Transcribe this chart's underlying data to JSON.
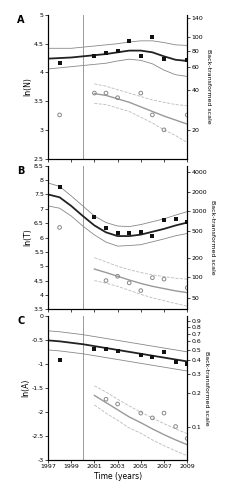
{
  "vline_x": 2000,
  "panelA": {
    "label": "A",
    "ylabel": "ln(N)",
    "ylabel2": "Back-transformed scale",
    "ylim": [
      2.5,
      5.0
    ],
    "yticks": [
      2.5,
      3.0,
      3.5,
      4.0,
      4.5,
      5.0
    ],
    "yticks2_labels": [
      "20",
      "40",
      "60",
      "80",
      "100",
      "140"
    ],
    "yticks2_vals": [
      3.0,
      3.69,
      4.09,
      4.38,
      4.61,
      4.94
    ],
    "black_dots_x": [
      1998,
      2001,
      2002,
      2003,
      2004,
      2005,
      2006,
      2007,
      2009
    ],
    "black_dots_y": [
      4.17,
      4.29,
      4.34,
      4.38,
      4.55,
      4.28,
      4.61,
      4.24,
      4.22
    ],
    "black_solid_x": [
      1997,
      1998,
      1999,
      2000,
      2001,
      2002,
      2003,
      2004,
      2005,
      2006,
      2007,
      2008,
      2009
    ],
    "black_solid_y": [
      4.24,
      4.25,
      4.26,
      4.28,
      4.3,
      4.32,
      4.35,
      4.38,
      4.38,
      4.35,
      4.28,
      4.22,
      4.2
    ],
    "black_upper_y": [
      4.42,
      4.42,
      4.42,
      4.44,
      4.46,
      4.48,
      4.5,
      4.53,
      4.55,
      4.55,
      4.52,
      4.48,
      4.47
    ],
    "black_lower_y": [
      4.06,
      4.08,
      4.1,
      4.12,
      4.14,
      4.16,
      4.2,
      4.23,
      4.21,
      4.15,
      4.04,
      3.96,
      3.93
    ],
    "grey_dots_x": [
      1998,
      2001,
      2002,
      2003,
      2005,
      2006,
      2007,
      2009
    ],
    "grey_dots_y": [
      3.26,
      3.64,
      3.64,
      3.56,
      3.64,
      3.26,
      3.0,
      3.26
    ],
    "grey_solid_x": [
      2001,
      2002,
      2003,
      2004,
      2005,
      2006,
      2007,
      2008,
      2009
    ],
    "grey_solid_y": [
      3.63,
      3.6,
      3.54,
      3.48,
      3.4,
      3.32,
      3.24,
      3.17,
      3.1
    ],
    "grey_upper_y": [
      3.8,
      3.76,
      3.7,
      3.64,
      3.58,
      3.52,
      3.48,
      3.44,
      3.42
    ],
    "grey_lower_y": [
      3.46,
      3.44,
      3.38,
      3.32,
      3.22,
      3.12,
      3.0,
      2.9,
      2.78
    ]
  },
  "panelB": {
    "label": "B",
    "ylabel": "ln(T)",
    "ylabel2": "Back-transformed scale",
    "ylim": [
      3.5,
      8.5
    ],
    "yticks": [
      3.5,
      4.0,
      4.5,
      5.0,
      5.5,
      6.0,
      6.5,
      7.0,
      7.5,
      8.0,
      8.5
    ],
    "yticks2_labels": [
      "50",
      "100",
      "200",
      "500",
      "1000",
      "2000",
      "4000"
    ],
    "yticks2_vals": [
      3.91,
      4.61,
      5.3,
      6.21,
      6.91,
      7.6,
      8.29
    ],
    "black_dots_x": [
      1998,
      2001,
      2002,
      2003,
      2004,
      2005,
      2006,
      2007,
      2008,
      2009
    ],
    "black_dots_y": [
      7.75,
      6.72,
      6.32,
      6.15,
      6.15,
      6.2,
      6.05,
      6.6,
      6.65,
      6.55
    ],
    "black_solid_x": [
      1997,
      1998,
      1999,
      2000,
      2001,
      2002,
      2003,
      2004,
      2005,
      2006,
      2007,
      2008,
      2009
    ],
    "black_solid_y": [
      7.5,
      7.4,
      7.1,
      6.75,
      6.42,
      6.18,
      6.05,
      6.05,
      6.1,
      6.2,
      6.3,
      6.42,
      6.52
    ],
    "black_upper_y": [
      7.9,
      7.78,
      7.45,
      7.1,
      6.75,
      6.52,
      6.4,
      6.38,
      6.45,
      6.55,
      6.65,
      6.78,
      6.9
    ],
    "black_lower_y": [
      7.1,
      7.02,
      6.75,
      6.4,
      6.09,
      5.84,
      5.7,
      5.72,
      5.75,
      5.85,
      5.95,
      6.06,
      6.14
    ],
    "grey_dots_x": [
      1998,
      2002,
      2003,
      2004,
      2005,
      2006,
      2007,
      2009
    ],
    "grey_dots_y": [
      6.35,
      4.5,
      4.65,
      4.42,
      4.15,
      4.6,
      4.55,
      4.25
    ],
    "grey_solid_x": [
      2001,
      2002,
      2003,
      2004,
      2005,
      2006,
      2007,
      2008,
      2009
    ],
    "grey_solid_y": [
      4.9,
      4.78,
      4.65,
      4.52,
      4.4,
      4.3,
      4.22,
      4.14,
      4.08
    ],
    "grey_upper_y": [
      5.3,
      5.15,
      5.0,
      4.88,
      4.78,
      4.7,
      4.64,
      4.58,
      4.55
    ],
    "grey_lower_y": [
      4.5,
      4.41,
      4.3,
      4.16,
      4.02,
      3.9,
      3.8,
      3.7,
      3.61
    ]
  },
  "panelC": {
    "label": "C",
    "ylabel": "ln(A)",
    "ylabel2": "Back-transformed scale",
    "ylim": [
      -3.0,
      0.0
    ],
    "yticks": [
      -3.0,
      -2.5,
      -2.0,
      -1.5,
      -1.0,
      -0.5,
      0.0
    ],
    "yticks2_labels": [
      "0.1",
      "0.2",
      "0.3",
      "0.4",
      "0.5",
      "0.6",
      "0.7",
      "0.8",
      "0.9"
    ],
    "yticks2_vals": [
      -2.303,
      -1.609,
      -1.204,
      -0.916,
      -0.693,
      -0.511,
      -0.357,
      -0.223,
      -0.105
    ],
    "black_dots_x": [
      1998,
      2001,
      2002,
      2003,
      2005,
      2006,
      2007,
      2008,
      2009
    ],
    "black_dots_y": [
      -0.91,
      -0.69,
      -0.69,
      -0.73,
      -0.8,
      -0.85,
      -0.75,
      -0.95,
      -1.0
    ],
    "black_solid_x": [
      1997,
      1998,
      1999,
      2000,
      2001,
      2002,
      2003,
      2004,
      2005,
      2006,
      2007,
      2008,
      2009
    ],
    "black_solid_y": [
      -0.5,
      -0.52,
      -0.55,
      -0.58,
      -0.62,
      -0.66,
      -0.7,
      -0.74,
      -0.78,
      -0.82,
      -0.86,
      -0.9,
      -0.94
    ],
    "black_upper_y": [
      -0.3,
      -0.32,
      -0.35,
      -0.38,
      -0.42,
      -0.46,
      -0.5,
      -0.54,
      -0.58,
      -0.62,
      -0.66,
      -0.7,
      -0.74
    ],
    "black_lower_y": [
      -0.7,
      -0.72,
      -0.75,
      -0.78,
      -0.82,
      -0.86,
      -0.9,
      -0.94,
      -0.98,
      -1.02,
      -1.06,
      -1.1,
      -1.14
    ],
    "grey_dots_x": [
      2002,
      2003,
      2005,
      2006,
      2007,
      2008,
      2009
    ],
    "grey_dots_y": [
      -1.73,
      -1.83,
      -2.02,
      -2.12,
      -2.02,
      -2.3,
      -2.55
    ],
    "grey_solid_x": [
      2001,
      2002,
      2003,
      2004,
      2005,
      2006,
      2007,
      2008,
      2009
    ],
    "grey_solid_y": [
      -1.65,
      -1.8,
      -1.95,
      -2.1,
      -2.22,
      -2.35,
      -2.47,
      -2.58,
      -2.68
    ],
    "grey_upper_y": [
      -1.45,
      -1.58,
      -1.73,
      -1.87,
      -2.0,
      -2.12,
      -2.24,
      -2.35,
      -2.45
    ],
    "grey_lower_y": [
      -1.85,
      -2.02,
      -2.17,
      -2.33,
      -2.44,
      -2.58,
      -2.7,
      -2.81,
      -2.91
    ]
  },
  "xlabel": "Time (years)",
  "xtick_vals": [
    1997,
    1999,
    2001,
    2003,
    2005,
    2007,
    2009
  ],
  "black_dot_color": "#111111",
  "grey_dot_color": "#888888",
  "black_line_color": "#222222",
  "grey_line_color": "#999999",
  "black_ci_color": "#888888",
  "grey_ci_color": "#bbbbbb"
}
